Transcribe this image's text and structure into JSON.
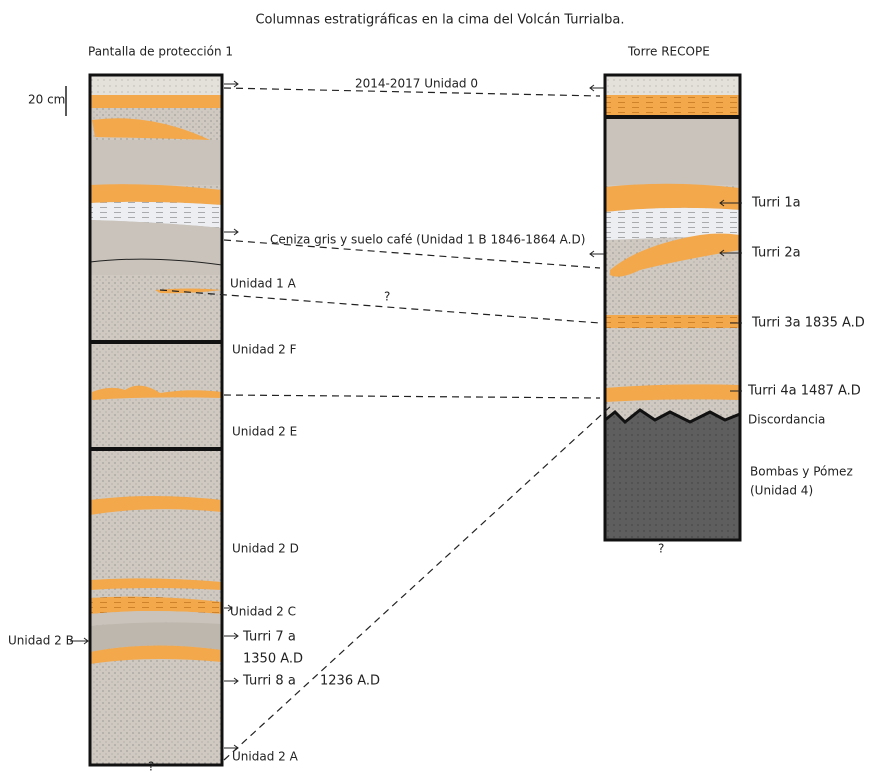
{
  "title": "Columnas estratigráficas en la cima del Volcán Turrialba.",
  "columns": [
    {
      "label": "Pantalla de protección 1"
    },
    {
      "label": "Torre RECOPE"
    }
  ],
  "scale": {
    "label": "20 cm"
  },
  "left_labels": [
    "2014-2017 Unidad 0",
    "Ceniza gris y suelo café (Unidad 1 B  1846-1864 A.D)",
    "Unidad 1 A",
    "?",
    "Unidad 2 F",
    "Unidad 2 E",
    "Unidad 2 D",
    "Unidad 2 C",
    "Unidad 2 B",
    "Turri 7 a",
    "1350 A.D",
    "Turri 8 a",
    "1236 A.D",
    "Unidad 2 A",
    "?"
  ],
  "right_labels": [
    "Turri 1a",
    "Turri 2a",
    "Turri 3a  1835 A.D",
    "Turri 4a  1487 A.D",
    "Discordancia",
    "Bombas  y Pómez",
    "(Unidad  4)",
    "?"
  ]
}
